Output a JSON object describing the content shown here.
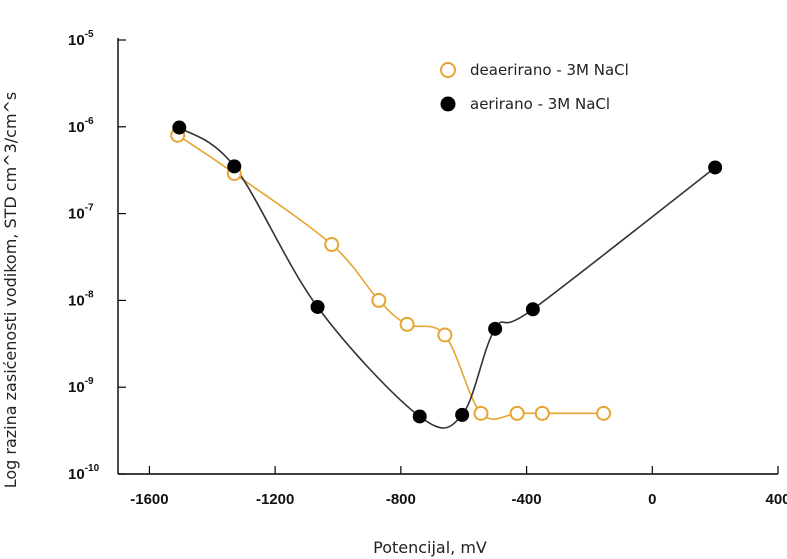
{
  "chart_data": {
    "type": "line",
    "xlabel": "Potencijal, mV",
    "ylabel": "Log razina zasićenosti vodikom, STD cm^3/cm^s",
    "x_ticks": [
      -1600,
      -1200,
      -800,
      -400,
      0,
      400
    ],
    "y_ticks": [
      {
        "base": "10",
        "exp": "-10",
        "value": 1e-10
      },
      {
        "base": "10",
        "exp": "-9",
        "value": 1e-09
      },
      {
        "base": "10",
        "exp": "-8",
        "value": 1e-08
      },
      {
        "base": "10",
        "exp": "-7",
        "value": 1e-07
      },
      {
        "base": "10",
        "exp": "-6",
        "value": 1e-06
      },
      {
        "base": "10",
        "exp": "-5",
        "value": 1e-05
      }
    ],
    "xlim": [
      -1700,
      400
    ],
    "ylim": [
      1e-10,
      1e-05
    ],
    "y_scale": "log",
    "legend_position": "top-right",
    "series": [
      {
        "name": "deaerirano - 3M NaCl",
        "color": "#E6A532",
        "marker": "open-circle",
        "x": [
          -1510,
          -1330,
          -1020,
          -870,
          -780,
          -660,
          -545,
          -430,
          -350,
          -155
        ],
        "y": [
          8e-07,
          2.9e-07,
          4.4e-08,
          1e-08,
          5.3e-09,
          4e-09,
          5e-10,
          5e-10,
          5e-10,
          5e-10
        ]
      },
      {
        "name": "aerirano - 3M NaCl",
        "color": "#000000",
        "marker": "filled-circle",
        "x": [
          -1505,
          -1330,
          -1065,
          -740,
          -605,
          -500,
          -380,
          200
        ],
        "y": [
          9.8e-07,
          3.5e-07,
          8.4e-09,
          4.6e-10,
          4.8e-10,
          4.7e-09,
          7.9e-09,
          3.4e-07
        ]
      }
    ]
  }
}
